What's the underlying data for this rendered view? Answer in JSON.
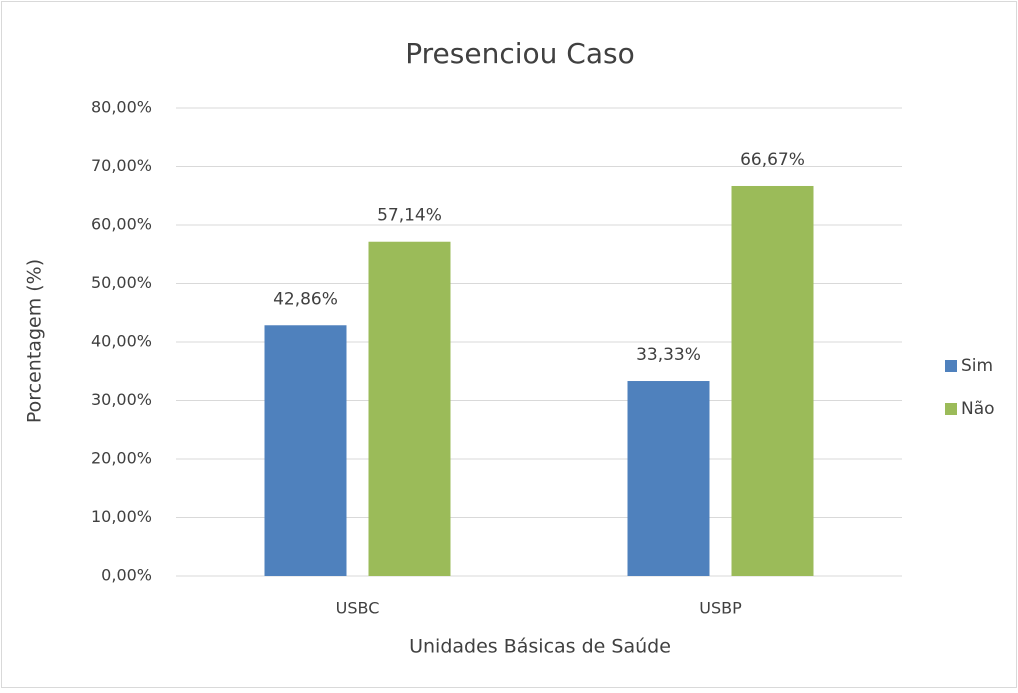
{
  "chart_data": {
    "type": "bar",
    "title": "Presenciou Caso",
    "x_label": "Unidades Básicas de Saúde",
    "y_label": "Porcentagem (%)",
    "categories": [
      "USBC",
      "USBP"
    ],
    "series": [
      {
        "name": "Sim",
        "color": "#4f81bd",
        "values": [
          42.86,
          33.33
        ],
        "value_labels": [
          "42,86%",
          "33,33%"
        ]
      },
      {
        "name": "Não",
        "color": "#9bbb59",
        "values": [
          57.14,
          66.67
        ],
        "value_labels": [
          "57,14%",
          "66,67%"
        ]
      }
    ],
    "ylim": [
      0,
      80
    ],
    "yticks": [
      {
        "value": 0,
        "label": "0,00%"
      },
      {
        "value": 10,
        "label": "10,00%"
      },
      {
        "value": 20,
        "label": "20,00%"
      },
      {
        "value": 30,
        "label": "30,00%"
      },
      {
        "value": 40,
        "label": "40,00%"
      },
      {
        "value": 50,
        "label": "50,00%"
      },
      {
        "value": 60,
        "label": "60,00%"
      },
      {
        "value": 70,
        "label": "70,00%"
      },
      {
        "value": 80,
        "label": "80,00%"
      }
    ],
    "grid": true,
    "legend": "right"
  }
}
